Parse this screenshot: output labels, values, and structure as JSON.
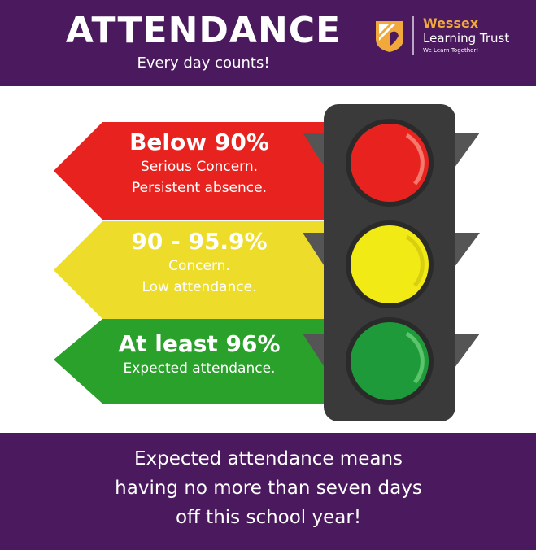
{
  "header": {
    "title": "ATTENDANCE",
    "subtitle": "Every day counts!"
  },
  "logo": {
    "name_line1": "Wessex",
    "name_line2": "Learning Trust",
    "tagline": "We Learn Together!"
  },
  "bands": [
    {
      "heading": "Below 90%",
      "line1": "Serious Concern.",
      "line2": "Persistent absence.",
      "color": "#e8231f"
    },
    {
      "heading": "90 - 95.9%",
      "line1": "Concern.",
      "line2": "Low attendance.",
      "color": "#eedc2a"
    },
    {
      "heading": "At least 96%",
      "line1": "Expected attendance.",
      "color": "#2aa12a"
    }
  ],
  "footer": {
    "line1": "Expected attendance means",
    "line2": "having no more than seven days",
    "line3": "off this school year!"
  },
  "colors": {
    "purple": "#4b1a5e",
    "logo_gold": "#f0a93a",
    "light_red": "#e8231f",
    "light_yellow": "#f2ea14",
    "light_green": "#1f9a3a",
    "housing": "#3a3a3a"
  }
}
